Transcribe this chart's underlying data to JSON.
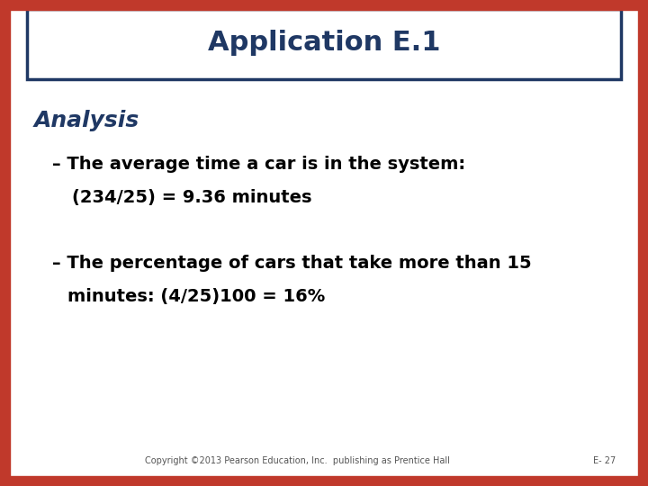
{
  "title": "Application E.1",
  "title_color": "#1F3864",
  "background_color": "#FFFFFF",
  "outer_border_color": "#C0392B",
  "title_box_border_color": "#1F3864",
  "section_label": "Analysis",
  "section_label_color": "#1F3864",
  "bullet1_dash": "– ",
  "bullet1_line1": "The average time a car is in the system:",
  "bullet1_line2": "(234/25) = 9.36 minutes",
  "bullet2_dash": "– ",
  "bullet2_line1": "The percentage of cars that take more than 15",
  "bullet2_line2": "minutes: (4/25)100 = 16%",
  "bullet_text_color": "#000000",
  "footer_text": "Copyright ©2013 Pearson Education, Inc.  publishing as Prentice Hall",
  "footer_page": "E- 27",
  "footer_color": "#555555"
}
